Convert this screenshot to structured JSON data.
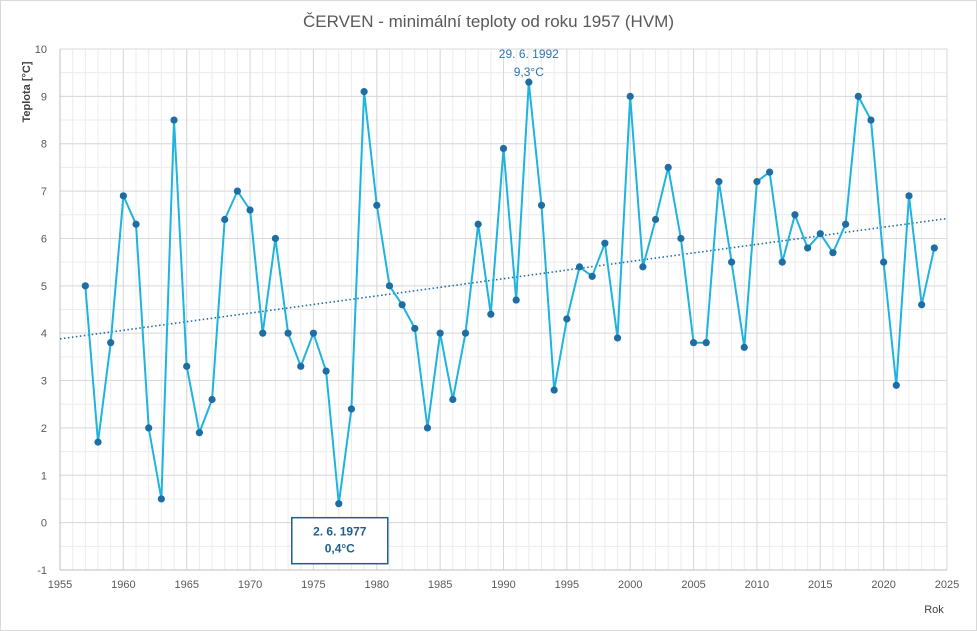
{
  "chart_data": {
    "type": "line",
    "title": "ČERVEN - minimální teploty od roku 1957 (HVM)",
    "xlabel": "Rok",
    "ylabel": "Teplota [°C]",
    "xlim": [
      1955,
      2025
    ],
    "ylim": [
      -1,
      10
    ],
    "x_ticks": [
      "1955",
      "1960",
      "1965",
      "1970",
      "1975",
      "1980",
      "1985",
      "1990",
      "1995",
      "2000",
      "2005",
      "2010",
      "2015",
      "2020",
      "2025"
    ],
    "y_ticks": [
      "-1",
      "0",
      "1",
      "2",
      "3",
      "4",
      "5",
      "6",
      "7",
      "8",
      "9",
      "10"
    ],
    "grid": true,
    "legend": "none",
    "colors": {
      "series": "#1fb4e0",
      "markers": "#1f6ea3",
      "trend": "#1f6ea3",
      "grid": "#d9d9d9"
    },
    "series": [
      {
        "x": [
          1957,
          1958,
          1959,
          1960,
          1961,
          1962,
          1963,
          1964,
          1965,
          1966,
          1967,
          1968,
          1969,
          1970,
          1971,
          1972,
          1973,
          1974,
          1975,
          1976,
          1977,
          1978,
          1979,
          1980,
          1981,
          1982,
          1983,
          1984,
          1985,
          1986,
          1987,
          1988,
          1989,
          1990,
          1991,
          1992,
          1993,
          1994,
          1995,
          1996,
          1997,
          1998,
          1999,
          2000,
          2001,
          2002,
          2003,
          2004,
          2005,
          2006,
          2007,
          2008,
          2009,
          2010,
          2011,
          2012,
          2013,
          2014,
          2015,
          2016,
          2017,
          2018,
          2019,
          2020,
          2021,
          2022,
          2023,
          2024
        ],
        "values": [
          5.0,
          1.7,
          3.8,
          6.9,
          6.3,
          2.0,
          0.5,
          8.5,
          3.3,
          1.9,
          2.6,
          6.4,
          7.0,
          6.6,
          4.0,
          6.0,
          4.0,
          3.3,
          4.0,
          3.2,
          0.4,
          2.4,
          9.1,
          6.7,
          5.0,
          4.6,
          4.1,
          2.0,
          4.0,
          2.6,
          4.0,
          6.3,
          4.4,
          7.9,
          4.7,
          9.3,
          6.7,
          2.8,
          4.3,
          5.4,
          5.2,
          5.9,
          3.9,
          9.0,
          5.4,
          6.4,
          7.5,
          6.0,
          3.8,
          3.8,
          7.2,
          5.5,
          3.7,
          7.2,
          7.4,
          5.5,
          6.5,
          5.8,
          6.1,
          5.7,
          6.3,
          9.0,
          8.5,
          5.5,
          2.9,
          6.9,
          4.6,
          5.8
        ]
      }
    ],
    "trendline": {
      "type": "linear",
      "x": [
        1955,
        2025
      ],
      "values": [
        3.88,
        6.42
      ]
    },
    "annotations": [
      {
        "lines": [
          "29. 6. 1992",
          "9,3°C"
        ],
        "x": 1992,
        "y": 9.3,
        "boxed": false
      },
      {
        "lines": [
          "2. 6. 1977",
          "0,4°C"
        ],
        "x": 1977,
        "y": 0.4,
        "boxed": true
      }
    ]
  }
}
